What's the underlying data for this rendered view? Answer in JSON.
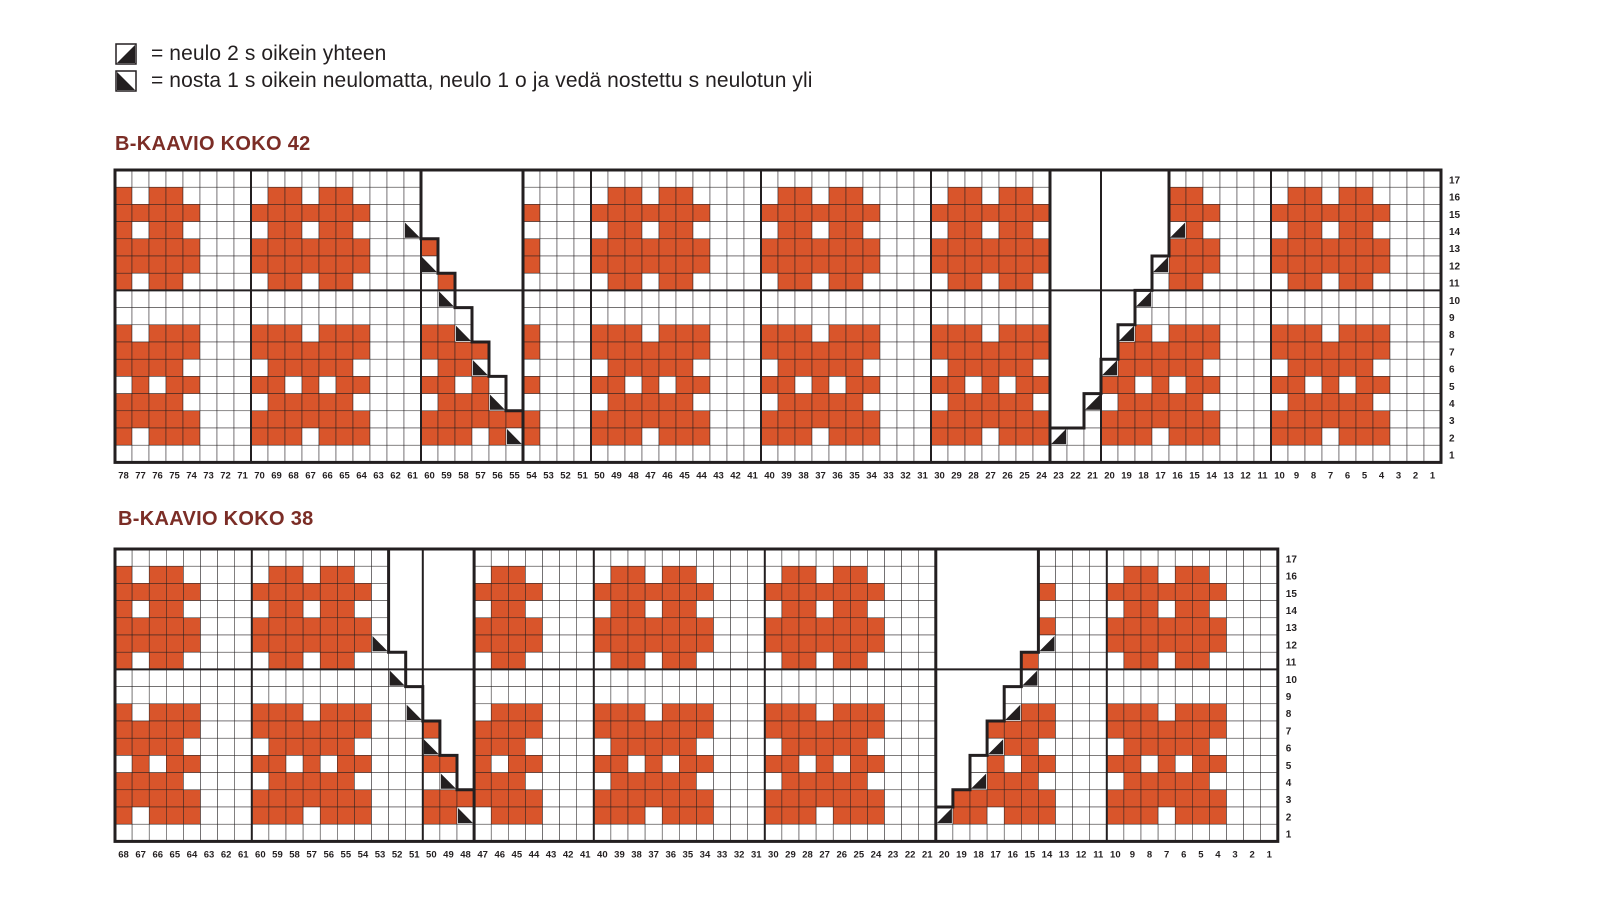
{
  "legend": {
    "k2tog_text": "= neulo 2 s oikein yhteen",
    "skp_text": "= nosta 1 s oikein neulomatta, neulo 1 o ja vedä nostettu s neulotun yli"
  },
  "colors": {
    "pattern": "#d9552b",
    "grid": "#231f20",
    "title": "#7b2d26"
  },
  "charts": [
    {
      "title": "B-KAAVIO KOKO 42",
      "stitches": 78,
      "rows": 17,
      "motif_repeat": 10,
      "first_motif_col": 1,
      "left_decrease_start": 61,
      "left_decrease_end": 56,
      "gap_start": 55,
      "gap_end": 54,
      "right_decrease_start": 23,
      "right_decrease_end": 17,
      "gap_right_start": 24,
      "gap_right_end": 23,
      "symbols": "k2tog/skp",
      "row_labels": [
        "17",
        "16",
        "15",
        "14",
        "13",
        "12",
        "11",
        "10",
        "9",
        "8",
        "7",
        "6",
        "5",
        "4",
        "3",
        "2",
        "1"
      ],
      "col_labels": [
        "78",
        "77",
        "76",
        "75",
        "74",
        "73",
        "72",
        "71",
        "70",
        "69",
        "68",
        "67",
        "66",
        "65",
        "64",
        "63",
        "62",
        "61",
        "60",
        "59",
        "58",
        "57",
        "56",
        "55",
        "54",
        "53",
        "52",
        "51",
        "50",
        "49",
        "48",
        "47",
        "46",
        "45",
        "44",
        "43",
        "42",
        "41",
        "40",
        "39",
        "38",
        "37",
        "36",
        "35",
        "34",
        "33",
        "32",
        "31",
        "30",
        "29",
        "28",
        "27",
        "26",
        "25",
        "24",
        "23",
        "22",
        "21",
        "20",
        "19",
        "18",
        "17",
        "16",
        "15",
        "14",
        "13",
        "12",
        "11",
        "10",
        "9",
        "8",
        "7",
        "6",
        "5",
        "4",
        "3",
        "2",
        "1"
      ]
    },
    {
      "title": "B-KAAVIO KOKO 38",
      "stitches": 68,
      "rows": 17,
      "motif_repeat": 10,
      "row_labels": [
        "17",
        "16",
        "15",
        "14",
        "13",
        "12",
        "11",
        "10",
        "9",
        "8",
        "7",
        "6",
        "5",
        "4",
        "3",
        "2",
        "1"
      ],
      "col_labels": [
        "68",
        "67",
        "66",
        "65",
        "64",
        "63",
        "62",
        "61",
        "60",
        "59",
        "58",
        "57",
        "56",
        "55",
        "54",
        "53",
        "52",
        "51",
        "50",
        "49",
        "48",
        "47",
        "46",
        "45",
        "44",
        "43",
        "42",
        "41",
        "40",
        "39",
        "38",
        "37",
        "36",
        "35",
        "34",
        "33",
        "32",
        "31",
        "30",
        "29",
        "28",
        "27",
        "26",
        "25",
        "24",
        "23",
        "22",
        "21",
        "20",
        "19",
        "18",
        "17",
        "16",
        "15",
        "14",
        "13",
        "12",
        "11",
        "10",
        "9",
        "8",
        "7",
        "6",
        "5",
        "4",
        "3",
        "2",
        "1"
      ]
    }
  ]
}
